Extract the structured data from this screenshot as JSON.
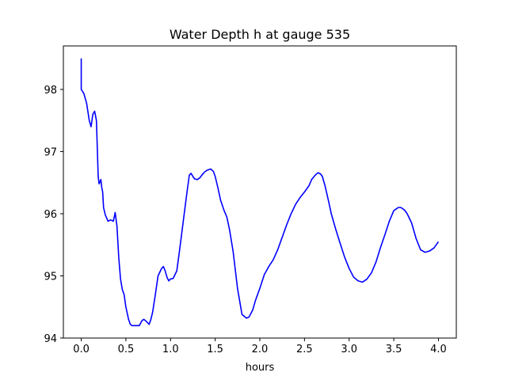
{
  "chart_data": {
    "type": "line",
    "title": "Water Depth h at gauge 535",
    "xlabel": "hours",
    "ylabel": "",
    "xlim": [
      -0.2,
      4.2
    ],
    "ylim": [
      94.0,
      98.7
    ],
    "xticks": [
      0.0,
      0.5,
      1.0,
      1.5,
      2.0,
      2.5,
      3.0,
      3.5,
      4.0
    ],
    "xtick_labels": [
      "0.0",
      "0.5",
      "1.0",
      "1.5",
      "2.0",
      "2.5",
      "3.0",
      "3.5",
      "4.0"
    ],
    "yticks": [
      94,
      95,
      96,
      97,
      98
    ],
    "ytick_labels": [
      "94",
      "95",
      "96",
      "97",
      "98"
    ],
    "grid": false,
    "series": [
      {
        "color": "#0000ff",
        "x": [
          0.0,
          0.0,
          0.01,
          0.03,
          0.06,
          0.09,
          0.11,
          0.13,
          0.15,
          0.17,
          0.19,
          0.2,
          0.22,
          0.23,
          0.24,
          0.25,
          0.27,
          0.3,
          0.33,
          0.36,
          0.38,
          0.4,
          0.42,
          0.44,
          0.46,
          0.48,
          0.5,
          0.53,
          0.55,
          0.57,
          0.6,
          0.65,
          0.68,
          0.7,
          0.72,
          0.74,
          0.76,
          0.78,
          0.8,
          0.83,
          0.86,
          0.88,
          0.9,
          0.92,
          0.94,
          0.96,
          0.98,
          1.0,
          1.03,
          1.07,
          1.1,
          1.14,
          1.18,
          1.21,
          1.23,
          1.25,
          1.27,
          1.3,
          1.33,
          1.35,
          1.38,
          1.41,
          1.45,
          1.48,
          1.5,
          1.53,
          1.56,
          1.6,
          1.63,
          1.66,
          1.7,
          1.75,
          1.8,
          1.85,
          1.88,
          1.92,
          1.95,
          2.0,
          2.05,
          2.1,
          2.15,
          2.2,
          2.25,
          2.3,
          2.35,
          2.4,
          2.45,
          2.5,
          2.55,
          2.58,
          2.62,
          2.65,
          2.68,
          2.7,
          2.73,
          2.77,
          2.8,
          2.85,
          2.9,
          2.95,
          3.0,
          3.05,
          3.1,
          3.15,
          3.2,
          3.25,
          3.3,
          3.35,
          3.4,
          3.45,
          3.5,
          3.55,
          3.58,
          3.62,
          3.65,
          3.7,
          3.75,
          3.8,
          3.85,
          3.9,
          3.95,
          4.0
        ],
        "y": [
          98.5,
          98.0,
          97.98,
          97.93,
          97.78,
          97.5,
          97.4,
          97.6,
          97.65,
          97.5,
          96.6,
          96.48,
          96.55,
          96.42,
          96.35,
          96.1,
          95.98,
          95.88,
          95.9,
          95.88,
          96.02,
          95.8,
          95.3,
          94.95,
          94.78,
          94.7,
          94.5,
          94.3,
          94.22,
          94.2,
          94.2,
          94.2,
          94.28,
          94.3,
          94.28,
          94.25,
          94.22,
          94.3,
          94.42,
          94.7,
          95.0,
          95.06,
          95.12,
          95.15,
          95.08,
          94.98,
          94.92,
          94.95,
          94.96,
          95.08,
          95.4,
          95.85,
          96.3,
          96.62,
          96.65,
          96.6,
          96.56,
          96.55,
          96.58,
          96.62,
          96.67,
          96.7,
          96.72,
          96.68,
          96.6,
          96.42,
          96.22,
          96.05,
          95.95,
          95.75,
          95.4,
          94.8,
          94.38,
          94.32,
          94.34,
          94.45,
          94.6,
          94.8,
          95.02,
          95.15,
          95.26,
          95.42,
          95.62,
          95.82,
          96.0,
          96.15,
          96.26,
          96.35,
          96.45,
          96.55,
          96.62,
          96.66,
          96.64,
          96.6,
          96.45,
          96.2,
          96.0,
          95.75,
          95.52,
          95.3,
          95.12,
          94.98,
          94.92,
          94.9,
          94.95,
          95.05,
          95.22,
          95.45,
          95.66,
          95.88,
          96.05,
          96.1,
          96.1,
          96.06,
          96.0,
          95.85,
          95.6,
          95.42,
          95.38,
          95.4,
          95.45,
          95.55
        ]
      }
    ]
  }
}
